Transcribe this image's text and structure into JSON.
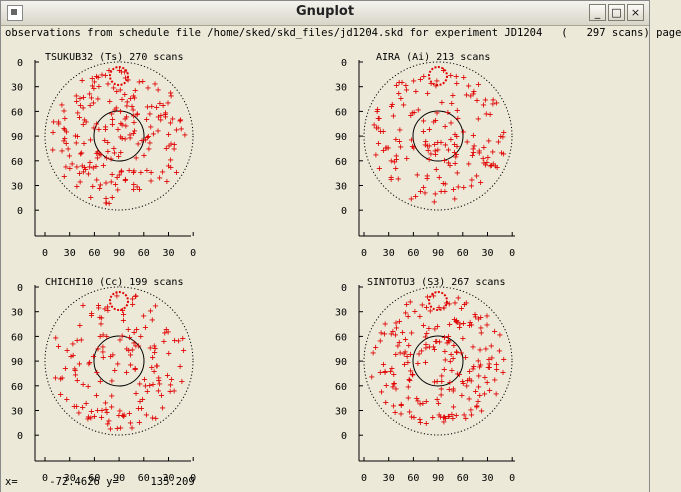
{
  "window": {
    "title": "Gnuplot",
    "minimize_icon": "minimize-icon",
    "maximize_icon": "maximize-icon",
    "close_icon": "close-icon",
    "minimize_glyph": "_",
    "maximize_glyph": "□",
    "close_glyph": "×"
  },
  "header": "observations from schedule file /home/sked/skd_files/jd1204.skd for experiment JD1204   (   297 scans) page",
  "status": {
    "x_label": "x=",
    "x_value": "-72.4626",
    "y_label": "y=",
    "y_value": "135.209"
  },
  "colors": {
    "points": "#e00000",
    "axes": "#000000",
    "background": "#ece9d8"
  },
  "chart_data": [
    {
      "type": "scatter",
      "title": "TSUKUB32 (Ts)  270 scans",
      "station": "TSUKUB32 (Ts)",
      "scans": 270,
      "x_ticks": [
        "0",
        "30",
        "60",
        "90",
        "60",
        "30",
        "0"
      ],
      "y_ticks": [
        "0",
        "30",
        "60",
        "90",
        "60",
        "30",
        "0"
      ],
      "marker": "+",
      "seed": 11
    },
    {
      "type": "scatter",
      "title": "AIRA (Ai)  213 scans",
      "station": "AIRA (Ai)",
      "scans": 213,
      "x_ticks": [
        "0",
        "30",
        "60",
        "90",
        "60",
        "30",
        "0"
      ],
      "y_ticks": [
        "0",
        "30",
        "60",
        "90",
        "60",
        "30",
        "0"
      ],
      "marker": "+",
      "seed": 23
    },
    {
      "type": "scatter",
      "title": "CHICHI10 (Cc)  199 scans",
      "station": "CHICHI10 (Cc)",
      "scans": 199,
      "x_ticks": [
        "0",
        "30",
        "60",
        "90",
        "60",
        "30",
        "0"
      ],
      "y_ticks": [
        "0",
        "30",
        "60",
        "90",
        "60",
        "30",
        "0"
      ],
      "marker": "+",
      "seed": 37
    },
    {
      "type": "scatter",
      "title": "SINTOTU3 (S3)  267 scans",
      "station": "SINTOTU3 (S3)",
      "scans": 267,
      "x_ticks": [
        "0",
        "30",
        "60",
        "90",
        "60",
        "30",
        "0"
      ],
      "y_ticks": [
        "0",
        "30",
        "60",
        "90",
        "60",
        "30",
        "0"
      ],
      "marker": "+",
      "seed": 53
    }
  ]
}
